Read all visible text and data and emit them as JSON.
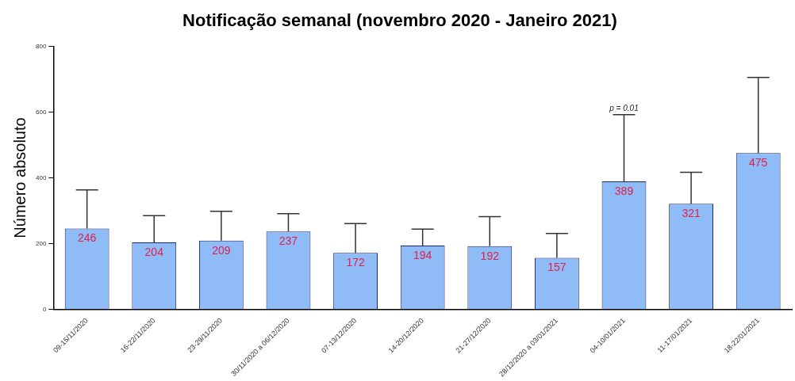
{
  "chart_data": {
    "type": "bar",
    "title": "Notificação semanal (novembro 2020 - Janeiro 2021)",
    "ylabel": "Número absoluto",
    "categories": [
      "09-15/11/2020",
      "16-22/11/2020",
      "23-29/11/2020",
      "30/11/2020 a 06/12/2020",
      "07-13/12/2020",
      "14-20/12/2020",
      "21-27/12/2020",
      "28/12/2020 a 03/01/2021",
      "04-10/01/2021",
      "11-17/01/2021",
      "18-22/01/2021"
    ],
    "values": [
      246,
      204,
      209,
      237,
      172,
      194,
      192,
      157,
      389,
      321,
      475
    ],
    "errors": [
      [
        246,
        363
      ],
      [
        204,
        285
      ],
      [
        209,
        298
      ],
      [
        237,
        291
      ],
      [
        172,
        261
      ],
      [
        194,
        244
      ],
      [
        192,
        282
      ],
      [
        157,
        231
      ],
      [
        389,
        592
      ],
      [
        321,
        417
      ],
      [
        475,
        705
      ]
    ],
    "color": "#8fbcf7",
    "ylim": [
      0,
      800
    ],
    "yticks": [
      0,
      200,
      400,
      600,
      800
    ],
    "data_labels": true,
    "grid": false,
    "legend": false,
    "annotations": [
      {
        "text": "p = 0.01",
        "x": "04-10/01/2021",
        "y": 592
      }
    ]
  }
}
